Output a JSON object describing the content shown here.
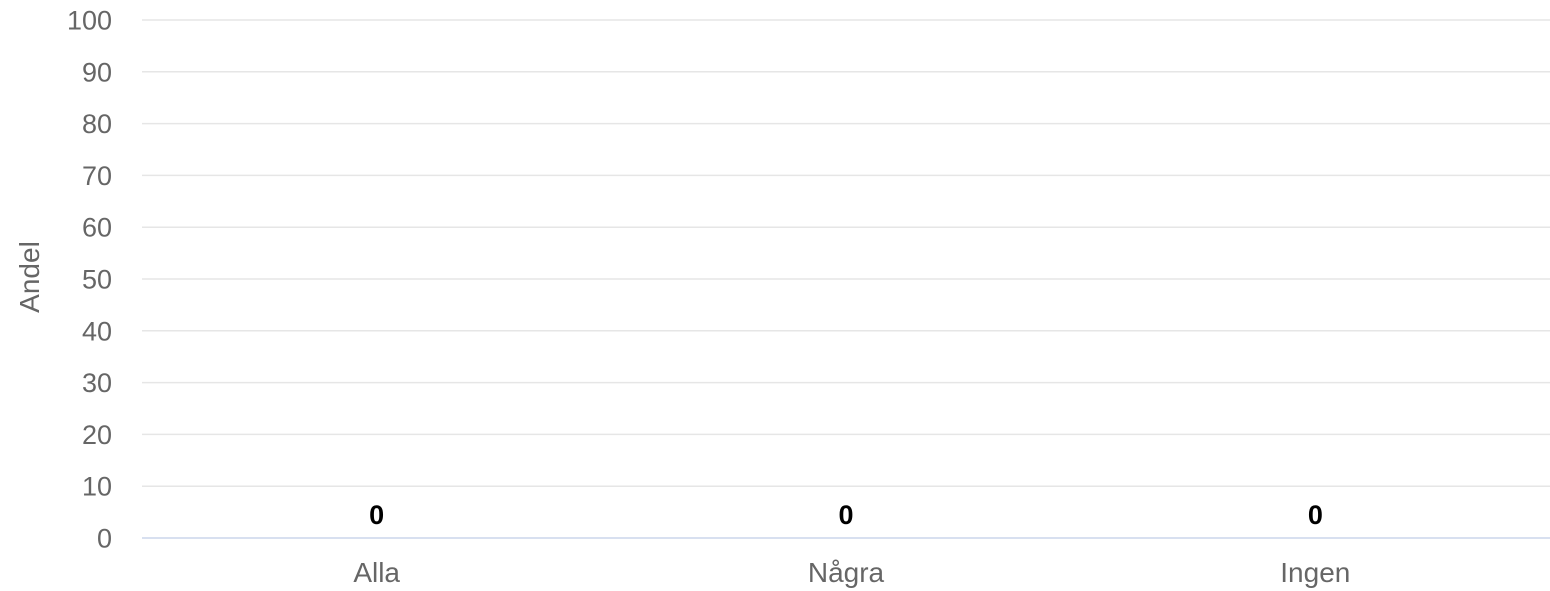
{
  "chart_data": {
    "type": "bar",
    "categories": [
      "Alla",
      "Några",
      "Ingen"
    ],
    "values": [
      0,
      0,
      0
    ],
    "data_labels": [
      "0",
      "0",
      "0"
    ],
    "title": "",
    "xlabel": "",
    "ylabel": "Andel",
    "ylim": [
      0,
      100
    ],
    "yticks": [
      0,
      10,
      20,
      30,
      40,
      50,
      60,
      70,
      80,
      90,
      100
    ],
    "grid": true,
    "legend": "none",
    "colors": {
      "grid": "#e6e6e6",
      "axis": "#ccd6eb",
      "tick_text": "#666666",
      "data_label": "#000000",
      "bar": "#7cb5ec"
    }
  }
}
